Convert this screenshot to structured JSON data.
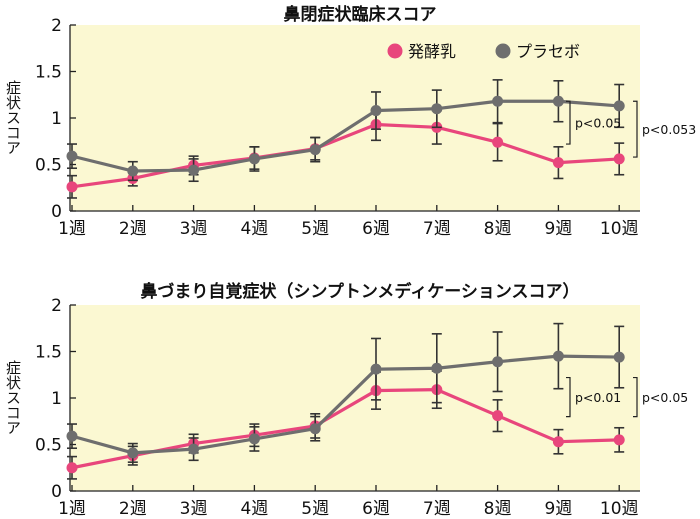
{
  "colors": {
    "ferment": "#e8467c",
    "placebo": "#6e6e6e",
    "plot_bg": "#fbf8d2"
  },
  "legend": {
    "items": [
      {
        "label": "発酵乳",
        "color": "#e8467c"
      },
      {
        "label": "プラセボ",
        "color": "#6e6e6e"
      }
    ]
  },
  "chart_data": [
    {
      "type": "line",
      "title": "鼻閉症状臨床スコア",
      "ylabel": "症状スコア",
      "xlabel": "",
      "categories": [
        "1週",
        "2週",
        "3週",
        "4週",
        "5週",
        "6週",
        "7週",
        "8週",
        "9週",
        "10週"
      ],
      "ylim": [
        0,
        2
      ],
      "yticks": [
        0,
        0.5,
        1,
        1.5,
        2
      ],
      "ytick_labels": [
        "0",
        "0.5",
        "1",
        "1.5",
        "2"
      ],
      "grid": false,
      "legend_position": "top-right",
      "series": [
        {
          "name": "発酵乳",
          "color": "#e8467c",
          "values": [
            0.26,
            0.35,
            0.49,
            0.57,
            0.67,
            0.93,
            0.9,
            0.74,
            0.52,
            0.56
          ],
          "error": [
            0.12,
            0.08,
            0.1,
            0.12,
            0.12,
            0.17,
            0.18,
            0.2,
            0.17,
            0.17
          ]
        },
        {
          "name": "プラセボ",
          "color": "#6e6e6e",
          "values": [
            0.59,
            0.43,
            0.44,
            0.56,
            0.66,
            1.08,
            1.1,
            1.18,
            1.18,
            1.13
          ],
          "error": [
            0.13,
            0.1,
            0.12,
            0.13,
            0.13,
            0.2,
            0.2,
            0.23,
            0.22,
            0.23
          ]
        }
      ],
      "annotations": [
        {
          "text": "p<0.05",
          "category_index": 8,
          "range": [
            0.72,
            1.18
          ]
        },
        {
          "text": "p<0.053",
          "category_index": 9,
          "range": [
            0.58,
            1.18
          ]
        }
      ]
    },
    {
      "type": "line",
      "title": "鼻づまり自覚症状（シンプトンメディケーションスコア）",
      "ylabel": "症状スコア",
      "xlabel": "",
      "categories": [
        "1週",
        "2週",
        "3週",
        "4週",
        "5週",
        "6週",
        "7週",
        "8週",
        "9週",
        "10週"
      ],
      "ylim": [
        0,
        2
      ],
      "yticks": [
        0,
        0.5,
        1,
        1.5,
        2
      ],
      "ytick_labels": [
        "0",
        "0.5",
        "1",
        "1.5",
        "2"
      ],
      "grid": false,
      "series": [
        {
          "name": "発酵乳",
          "color": "#e8467c",
          "values": [
            0.25,
            0.38,
            0.51,
            0.6,
            0.7,
            1.08,
            1.09,
            0.81,
            0.53,
            0.55
          ],
          "error": [
            0.12,
            0.1,
            0.1,
            0.12,
            0.13,
            0.2,
            0.2,
            0.17,
            0.13,
            0.13
          ]
        },
        {
          "name": "プラセボ",
          "color": "#6e6e6e",
          "values": [
            0.59,
            0.41,
            0.45,
            0.56,
            0.67,
            1.31,
            1.32,
            1.39,
            1.45,
            1.44
          ],
          "error": [
            0.13,
            0.1,
            0.12,
            0.13,
            0.13,
            0.33,
            0.37,
            0.32,
            0.35,
            0.33
          ]
        }
      ],
      "annotations": [
        {
          "text": "p<0.01",
          "category_index": 8,
          "range": [
            0.8,
            1.22
          ]
        },
        {
          "text": "p<0.05",
          "category_index": 9,
          "range": [
            0.8,
            1.22
          ]
        }
      ]
    }
  ]
}
